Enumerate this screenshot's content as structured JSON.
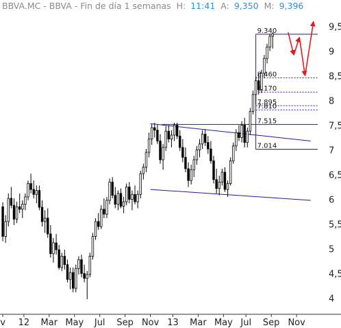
{
  "header": {
    "instrument": "BBVA.MC - BBVA - Fin de día 1 semanas",
    "h_label": "H:",
    "h_value": "11:41",
    "a_label": "A:",
    "a_value": "9,350",
    "m_label": "M:",
    "m_value": "9,396"
  },
  "colors": {
    "candle": "#000000",
    "trendline": "#1a1aa8",
    "annotation": "#1a1aa8",
    "projection": "#e11a1a",
    "header_gray": "#8a8a8a",
    "header_value": "#2f8fd8"
  },
  "chart_data": {
    "type": "candlestick",
    "title": "BBVA.MC - BBVA - Fin de día 1 semanas",
    "grid": false,
    "ylim": [
      3.98,
      9.7
    ],
    "y_ticks": [
      "9,5",
      "9",
      "8,5",
      "8",
      "7,5",
      "7",
      "6,5",
      "6",
      "5,5",
      "5",
      "4,5",
      "4"
    ],
    "y_tick_values": [
      9.5,
      9,
      8.5,
      8,
      7.5,
      7,
      6.5,
      6,
      5.5,
      5,
      4.5,
      4
    ],
    "x_ticks": [
      "v",
      "12",
      "Mar",
      "May",
      "Jul",
      "Sep",
      "Nov",
      "13",
      "Mar",
      "May",
      "Jul",
      "Sep",
      "Nov"
    ],
    "x_tick_weeks": [
      0.5,
      8,
      17,
      26,
      35,
      44,
      53,
      61,
      70,
      79,
      87,
      96,
      105
    ],
    "weeks": 113,
    "ohlc": [
      [
        5.85,
        5.94,
        5.15,
        5.25
      ],
      [
        5.25,
        5.68,
        5.12,
        5.55
      ],
      [
        5.55,
        6.12,
        5.45,
        6.02
      ],
      [
        6.02,
        6.25,
        5.82,
        5.88
      ],
      [
        5.88,
        6.02,
        5.48,
        5.6
      ],
      [
        5.6,
        5.95,
        5.52,
        5.85
      ],
      [
        5.85,
        6.12,
        5.72,
        5.8
      ],
      [
        5.8,
        5.98,
        5.62,
        5.9
      ],
      [
        5.9,
        6.12,
        5.78,
        6.05
      ],
      [
        6.05,
        6.38,
        5.98,
        6.32
      ],
      [
        6.32,
        6.52,
        6.12,
        6.2
      ],
      [
        6.2,
        6.38,
        6.02,
        6.1
      ],
      [
        6.1,
        6.28,
        5.92,
        6.18
      ],
      [
        6.18,
        6.28,
        5.78,
        5.84
      ],
      [
        5.84,
        5.98,
        5.45,
        5.55
      ],
      [
        5.55,
        5.78,
        5.32,
        5.62
      ],
      [
        5.62,
        5.82,
        5.22,
        5.3
      ],
      [
        5.3,
        5.48,
        4.82,
        4.9
      ],
      [
        4.9,
        5.22,
        4.72,
        5.12
      ],
      [
        5.12,
        5.3,
        4.88,
        4.98
      ],
      [
        4.98,
        5.08,
        4.58,
        4.62
      ],
      [
        4.62,
        4.92,
        4.55,
        4.85
      ],
      [
        4.85,
        4.98,
        4.58,
        4.68
      ],
      [
        4.68,
        4.78,
        4.32,
        4.38
      ],
      [
        4.38,
        4.62,
        4.18,
        4.52
      ],
      [
        4.52,
        4.62,
        4.12,
        4.2
      ],
      [
        4.2,
        4.68,
        4.12,
        4.6
      ],
      [
        4.6,
        4.85,
        4.48,
        4.78
      ],
      [
        4.78,
        4.88,
        4.42,
        4.5
      ],
      [
        4.5,
        4.68,
        4.32,
        4.4
      ],
      [
        4.4,
        4.55,
        3.98,
        4.48
      ],
      [
        4.48,
        4.92,
        4.42,
        4.85
      ],
      [
        4.85,
        5.32,
        4.78,
        5.25
      ],
      [
        5.25,
        5.62,
        5.18,
        5.55
      ],
      [
        5.55,
        5.72,
        5.38,
        5.45
      ],
      [
        5.45,
        5.88,
        5.4,
        5.8
      ],
      [
        5.8,
        6.02,
        5.62,
        5.7
      ],
      [
        5.7,
        6.05,
        5.62,
        5.98
      ],
      [
        5.98,
        6.42,
        5.9,
        6.35
      ],
      [
        6.35,
        6.45,
        6.02,
        6.08
      ],
      [
        6.08,
        6.25,
        5.82,
        5.9
      ],
      [
        5.9,
        6.18,
        5.78,
        6.12
      ],
      [
        6.12,
        6.22,
        5.82,
        5.86
      ],
      [
        5.86,
        6.05,
        5.72,
        5.95
      ],
      [
        5.95,
        6.32,
        5.88,
        6.25
      ],
      [
        6.25,
        6.35,
        5.92,
        6.0
      ],
      [
        6.0,
        6.18,
        5.78,
        6.1
      ],
      [
        6.1,
        6.28,
        5.9,
        5.95
      ],
      [
        5.95,
        6.18,
        5.82,
        6.1
      ],
      [
        6.1,
        6.58,
        6.02,
        6.52
      ],
      [
        6.52,
        6.72,
        6.4,
        6.65
      ],
      [
        6.65,
        7.02,
        6.55,
        6.95
      ],
      [
        6.95,
        7.35,
        6.85,
        7.22
      ],
      [
        7.22,
        7.52,
        7.1,
        7.45
      ],
      [
        7.45,
        7.55,
        7.25,
        7.4
      ],
      [
        7.4,
        7.52,
        7.12,
        7.18
      ],
      [
        7.18,
        7.32,
        6.72,
        6.8
      ],
      [
        6.8,
        7.12,
        6.6,
        7.05
      ],
      [
        7.05,
        7.48,
        6.98,
        7.38
      ],
      [
        7.38,
        7.5,
        7.15,
        7.22
      ],
      [
        7.22,
        7.4,
        7.05,
        7.3
      ],
      [
        7.3,
        7.55,
        7.18,
        7.5
      ],
      [
        7.5,
        7.55,
        7.22,
        7.28
      ],
      [
        7.28,
        7.4,
        6.98,
        7.05
      ],
      [
        7.05,
        7.22,
        6.75,
        6.85
      ],
      [
        6.85,
        7.05,
        6.55,
        6.62
      ],
      [
        6.62,
        6.75,
        6.25,
        6.38
      ],
      [
        6.38,
        6.7,
        6.3,
        6.6
      ],
      [
        6.6,
        6.88,
        6.45,
        6.8
      ],
      [
        6.8,
        7.08,
        6.7,
        7.0
      ],
      [
        7.0,
        7.22,
        6.85,
        7.12
      ],
      [
        7.12,
        7.4,
        7.02,
        7.32
      ],
      [
        7.32,
        7.42,
        7.08,
        7.15
      ],
      [
        7.15,
        7.28,
        6.92,
        7.02
      ],
      [
        7.02,
        7.18,
        6.72,
        6.78
      ],
      [
        6.78,
        6.88,
        6.32,
        6.4
      ],
      [
        6.4,
        6.62,
        6.12,
        6.22
      ],
      [
        6.22,
        6.48,
        6.08,
        6.35
      ],
      [
        6.35,
        6.62,
        6.28,
        6.55
      ],
      [
        6.55,
        6.65,
        6.15,
        6.2
      ],
      [
        6.2,
        6.38,
        6.05,
        6.32
      ],
      [
        6.32,
        6.85,
        6.28,
        6.78
      ],
      [
        6.78,
        7.15,
        6.72,
        7.08
      ],
      [
        7.08,
        7.42,
        6.98,
        7.35
      ],
      [
        7.35,
        7.5,
        7.18,
        7.25
      ],
      [
        7.25,
        7.58,
        7.15,
        7.5
      ],
      [
        7.5,
        7.65,
        7.05,
        7.15
      ],
      [
        7.15,
        7.45,
        7.05,
        7.38
      ],
      [
        7.38,
        7.85,
        7.3,
        7.78
      ],
      [
        7.78,
        8.2,
        7.72,
        8.12
      ],
      [
        8.12,
        8.48,
        7.92,
        8.4
      ],
      [
        8.4,
        8.55,
        8.12,
        8.22
      ],
      [
        8.22,
        8.62,
        8.15,
        8.55
      ],
      [
        8.55,
        8.92,
        8.45,
        8.85
      ],
      [
        8.85,
        9.15,
        8.75,
        9.08
      ],
      [
        9.08,
        9.35,
        9.0,
        9.3
      ],
      [
        9.3,
        9.38,
        9.05,
        9.35
      ]
    ],
    "support_resistance": [
      {
        "label": "9.340",
        "value": 9.34,
        "style": "solid"
      },
      {
        "label": "8.460",
        "value": 8.46,
        "style": "dashed"
      },
      {
        "label": "8.170",
        "value": 8.17,
        "style": "dashed"
      },
      {
        "label": "7.895",
        "value": 7.895,
        "style": "dashed"
      },
      {
        "label": "7.810",
        "value": 7.81,
        "style": "dashed"
      },
      {
        "label": "7.515",
        "value": 7.515,
        "style": "solid"
      },
      {
        "label": "7.014",
        "value": 7.014,
        "style": "solid"
      }
    ],
    "channel": {
      "upper": [
        [
          53,
          7.53
        ],
        [
          110,
          7.18
        ]
      ],
      "lower": [
        [
          53,
          6.2
        ],
        [
          110,
          5.98
        ]
      ],
      "breakout_level": 7.515
    },
    "projection_path": [
      [
        102,
        9.38
      ],
      [
        104,
        8.92
      ],
      [
        106,
        9.28
      ],
      [
        108,
        8.5
      ],
      [
        111,
        9.6
      ]
    ]
  }
}
